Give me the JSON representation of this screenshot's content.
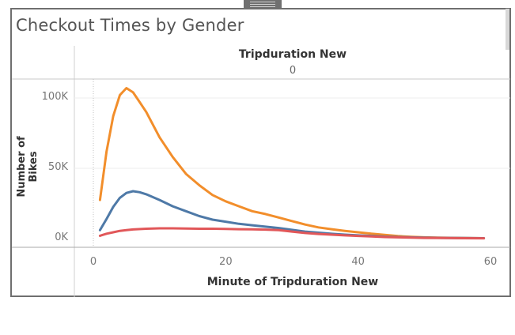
{
  "window": {
    "title": "Checkout Times by Gender"
  },
  "chart_data": {
    "type": "line",
    "title": "Checkout Times by Gender",
    "column_header": {
      "field": "Tripduration New",
      "value": "0"
    },
    "xlabel": "Minute of Tripduration New",
    "ylabel": "Number of Bikes",
    "xlim": [
      -2,
      62
    ],
    "ylim": [
      -5000,
      120000
    ],
    "x_ticks": [
      0,
      20,
      40,
      60
    ],
    "y_ticks": [
      0,
      50000,
      100000
    ],
    "y_tick_labels": [
      "0K",
      "50K",
      "100K"
    ],
    "legend": "none",
    "grid": true,
    "series": [
      {
        "color": "#f28e2b",
        "points": [
          [
            1,
            27500
          ],
          [
            2,
            62000
          ],
          [
            3,
            87000
          ],
          [
            4,
            102000
          ],
          [
            5,
            107000
          ],
          [
            6,
            104000
          ],
          [
            7,
            97000
          ],
          [
            8,
            90000
          ],
          [
            10,
            72000
          ],
          [
            12,
            58000
          ],
          [
            14,
            46000
          ],
          [
            16,
            38000
          ],
          [
            18,
            31000
          ],
          [
            20,
            26500
          ],
          [
            22,
            23000
          ],
          [
            24,
            19500
          ],
          [
            26,
            17500
          ],
          [
            28,
            15000
          ],
          [
            30,
            12500
          ],
          [
            32,
            10000
          ],
          [
            34,
            8000
          ],
          [
            36,
            6700
          ],
          [
            38,
            5500
          ],
          [
            40,
            4500
          ],
          [
            42,
            3500
          ],
          [
            44,
            2700
          ],
          [
            46,
            1800
          ],
          [
            48,
            1300
          ],
          [
            50,
            900
          ],
          [
            52,
            700
          ],
          [
            55,
            500
          ],
          [
            59,
            300
          ]
        ]
      },
      {
        "color": "#4e79a7",
        "points": [
          [
            1,
            6000
          ],
          [
            2,
            14000
          ],
          [
            3,
            22500
          ],
          [
            4,
            29000
          ],
          [
            5,
            32500
          ],
          [
            6,
            33700
          ],
          [
            7,
            33000
          ],
          [
            8,
            31500
          ],
          [
            10,
            27500
          ],
          [
            12,
            23000
          ],
          [
            14,
            19500
          ],
          [
            16,
            16000
          ],
          [
            18,
            13500
          ],
          [
            20,
            12000
          ],
          [
            22,
            10500
          ],
          [
            24,
            9500
          ],
          [
            26,
            8500
          ],
          [
            28,
            7500
          ],
          [
            30,
            6300
          ],
          [
            32,
            5000
          ],
          [
            34,
            4200
          ],
          [
            36,
            3400
          ],
          [
            38,
            2800
          ],
          [
            40,
            2300
          ],
          [
            42,
            1900
          ],
          [
            44,
            1400
          ],
          [
            46,
            1100
          ],
          [
            48,
            900
          ],
          [
            50,
            700
          ],
          [
            53,
            500
          ],
          [
            56,
            400
          ],
          [
            59,
            300
          ]
        ]
      },
      {
        "color": "#e15759",
        "points": [
          [
            1,
            2000
          ],
          [
            2,
            3500
          ],
          [
            3,
            4500
          ],
          [
            4,
            5500
          ],
          [
            5,
            6000
          ],
          [
            6,
            6500
          ],
          [
            8,
            7000
          ],
          [
            10,
            7300
          ],
          [
            12,
            7300
          ],
          [
            14,
            7200
          ],
          [
            16,
            7000
          ],
          [
            18,
            7000
          ],
          [
            20,
            6900
          ],
          [
            22,
            6700
          ],
          [
            24,
            6600
          ],
          [
            26,
            6400
          ],
          [
            28,
            6000
          ],
          [
            30,
            5000
          ],
          [
            32,
            4000
          ],
          [
            34,
            3300
          ],
          [
            36,
            2800
          ],
          [
            38,
            2300
          ],
          [
            40,
            1900
          ],
          [
            42,
            1500
          ],
          [
            44,
            1100
          ],
          [
            46,
            900
          ],
          [
            48,
            700
          ],
          [
            50,
            500
          ],
          [
            53,
            400
          ],
          [
            56,
            300
          ],
          [
            59,
            200
          ]
        ]
      }
    ]
  }
}
